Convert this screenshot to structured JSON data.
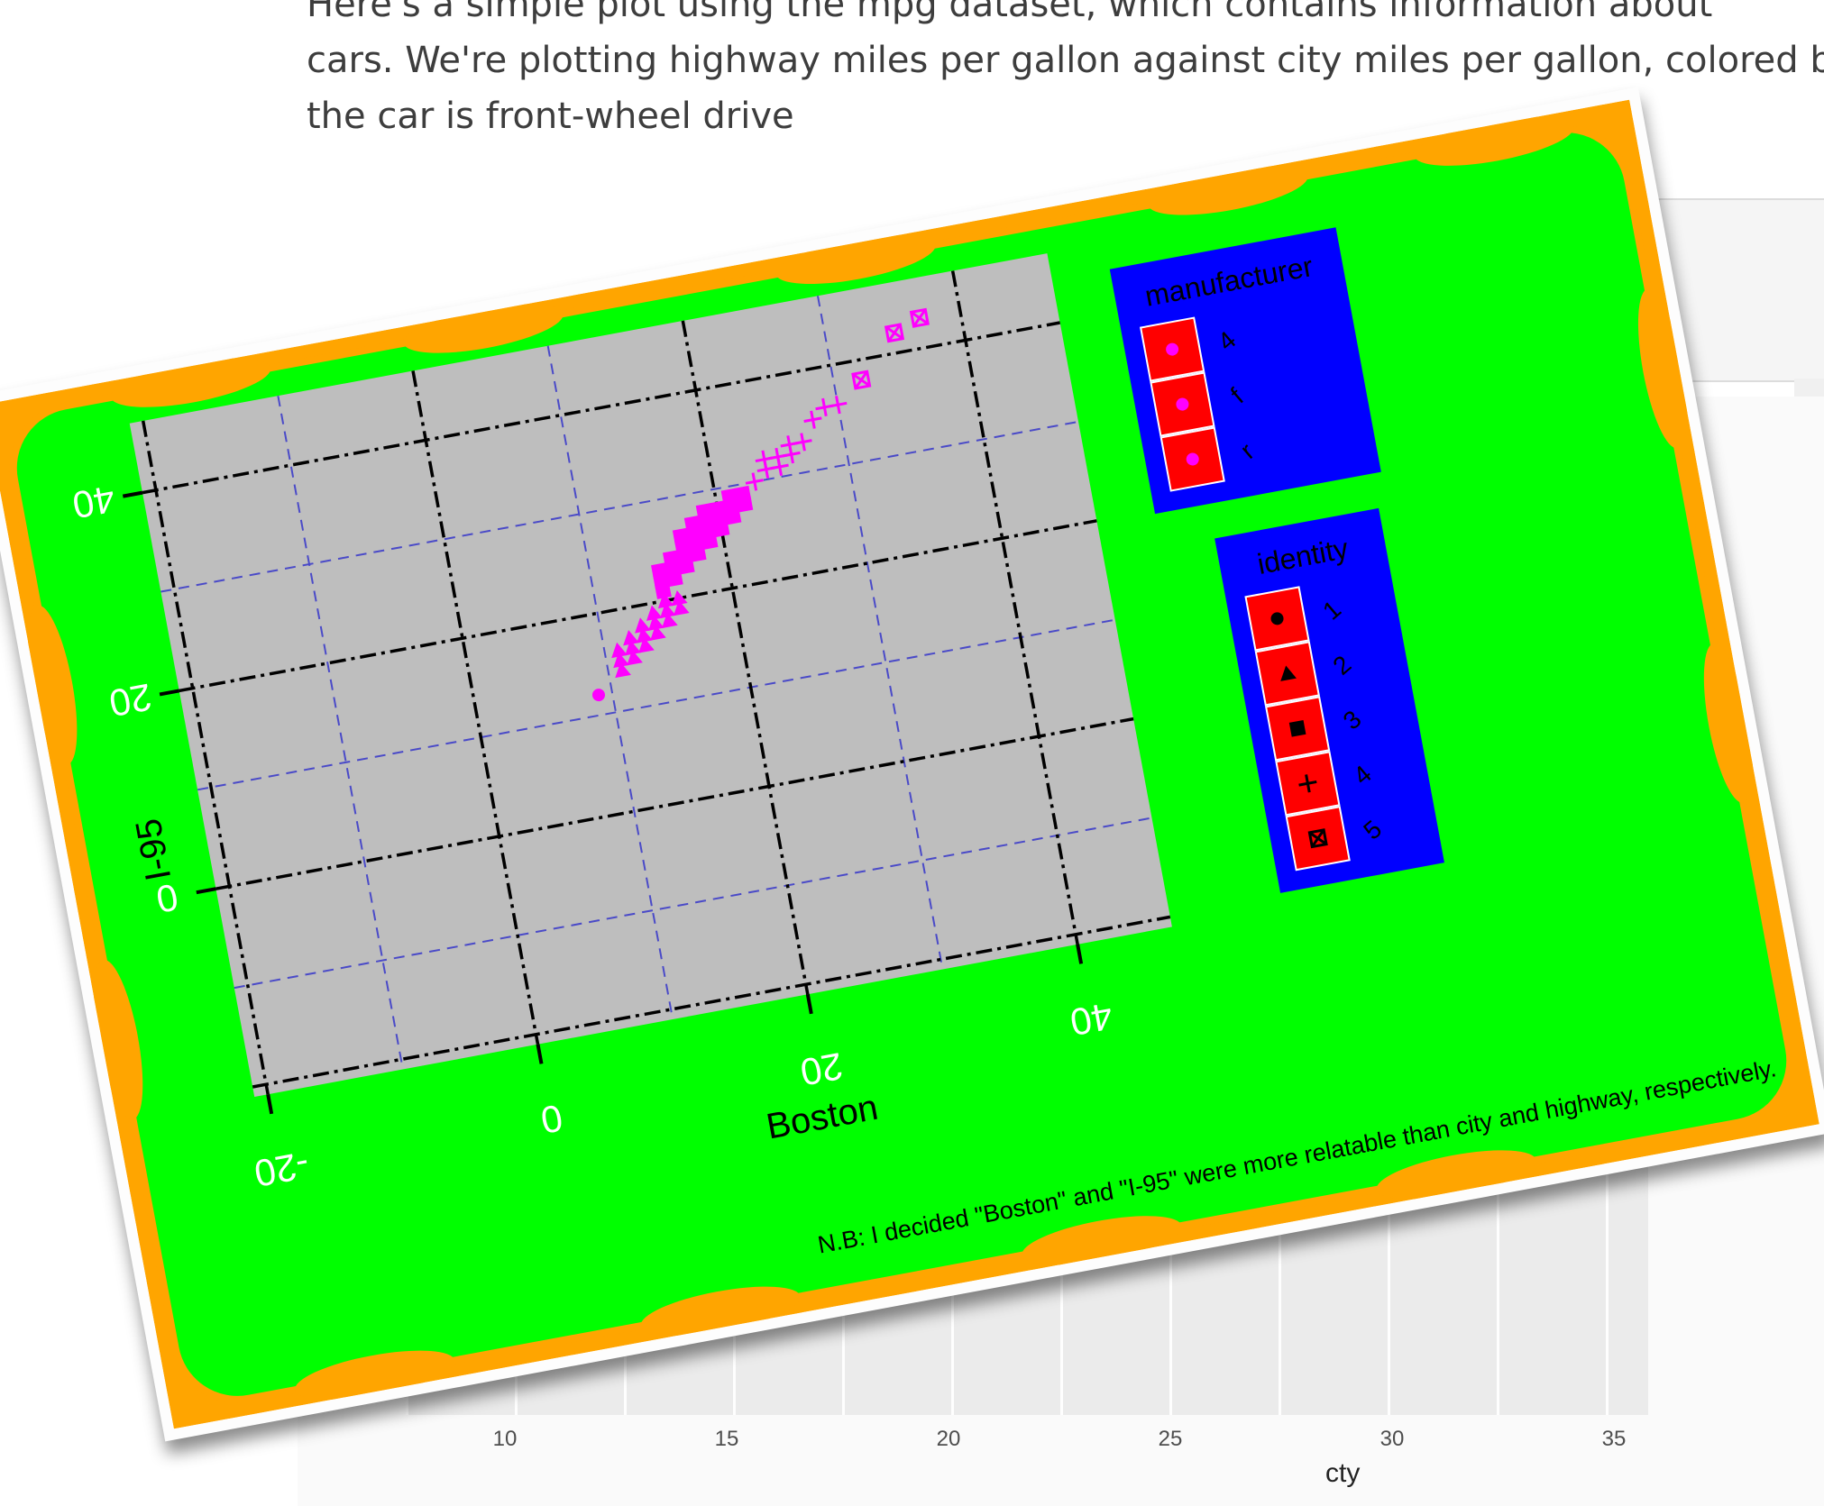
{
  "article": {
    "lines": [
      "Here's a simple plot using the mpg dataset, which contains information about",
      "cars. We're plotting highway miles per gallon against city miles per gallon, colored by",
      "the car is front-wheel drive"
    ]
  },
  "background_plot": {
    "x_ticks": [
      "10",
      "15",
      "20",
      "25",
      "30",
      "35"
    ],
    "xlabel": "cty"
  },
  "colors": {
    "plot_background": "#00ff00",
    "panel_background": "#bebebe",
    "border_accent": "#ffa500",
    "legend_background": "#0000ff",
    "legend_key": "#ff0000",
    "points": "#ff00ff",
    "major_grid": "#000000",
    "minor_grid": "#4a4ac8"
  },
  "chart_data": {
    "type": "scatter",
    "xlabel": "Boston",
    "ylabel": "I-95",
    "xlim": [
      -21,
      47
    ],
    "ylim": [
      -21,
      47
    ],
    "x_ticks": [
      "-20",
      "0",
      "20",
      "40"
    ],
    "y_ticks": [
      "0",
      "20",
      "40"
    ],
    "grid": true,
    "caption": "N.B: I decided \"Boston\" and \"I-95\" were more relatable than city and highway, respectively.",
    "legends": [
      {
        "title": "manufacturer",
        "entries": [
          "4",
          "f",
          "r"
        ]
      },
      {
        "title": "identity",
        "entries": [
          "1",
          "2",
          "3",
          "4",
          "5"
        ]
      }
    ],
    "series": [
      {
        "name": "1",
        "shape": "circle",
        "points": [
          [
            9,
            12
          ]
        ]
      },
      {
        "name": "2",
        "shape": "triangle",
        "points": [
          [
            11,
            14
          ],
          [
            11,
            15
          ],
          [
            11,
            16
          ],
          [
            12,
            15
          ],
          [
            12,
            16
          ],
          [
            12,
            17
          ],
          [
            13,
            16
          ],
          [
            13,
            17
          ],
          [
            13,
            18
          ],
          [
            14,
            17
          ],
          [
            14,
            18
          ],
          [
            14,
            19
          ],
          [
            15,
            18
          ],
          [
            15,
            19
          ],
          [
            15,
            20
          ],
          [
            16,
            19
          ],
          [
            16,
            20
          ]
        ]
      },
      {
        "name": "3",
        "shape": "square",
        "points": [
          [
            15,
            21
          ],
          [
            15,
            22
          ],
          [
            15,
            23
          ],
          [
            16,
            22
          ],
          [
            16,
            23
          ],
          [
            16,
            24
          ],
          [
            17,
            23
          ],
          [
            17,
            24
          ],
          [
            17,
            25
          ],
          [
            17,
            26
          ],
          [
            18,
            24
          ],
          [
            18,
            25
          ],
          [
            18,
            26
          ],
          [
            18,
            27
          ],
          [
            19,
            25
          ],
          [
            19,
            26
          ],
          [
            19,
            27
          ],
          [
            19,
            28
          ],
          [
            20,
            26
          ],
          [
            20,
            27
          ],
          [
            20,
            28
          ],
          [
            21,
            27
          ],
          [
            21,
            28
          ],
          [
            21,
            29
          ],
          [
            22,
            28
          ],
          [
            22,
            29
          ]
        ]
      },
      {
        "name": "4",
        "shape": "plus",
        "points": [
          [
            23,
            30
          ],
          [
            24,
            31
          ],
          [
            24,
            32
          ],
          [
            25,
            31
          ],
          [
            25,
            32
          ],
          [
            26,
            32
          ],
          [
            26,
            33
          ],
          [
            27,
            33
          ],
          [
            28,
            35
          ],
          [
            29,
            36
          ],
          [
            30,
            36
          ]
        ]
      },
      {
        "name": "5",
        "shape": "boxx",
        "points": [
          [
            32,
            38
          ],
          [
            35,
            42
          ],
          [
            37,
            43
          ]
        ]
      }
    ]
  }
}
